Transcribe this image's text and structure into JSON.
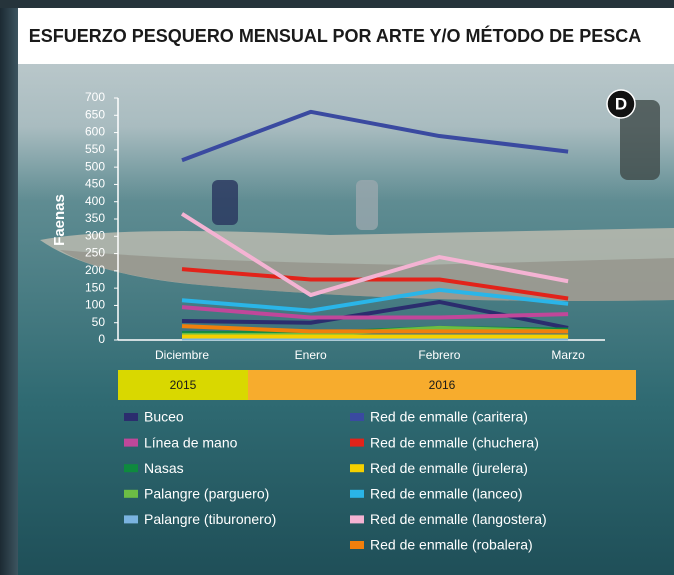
{
  "chart_data": {
    "type": "line",
    "title": "ESFUERZO PESQUERO MENSUAL POR ARTE Y/O MÉTODO DE PESCA",
    "panel_label": "D",
    "y_label": "Faenas",
    "categories": [
      "Diciembre",
      "Enero",
      "Febrero",
      "Marzo"
    ],
    "year_bands": [
      {
        "label": "2015",
        "color": "#d9d800"
      },
      {
        "label": "2016",
        "color": "#f7ac2d"
      }
    ],
    "ylim": [
      0,
      700
    ],
    "yticks": [
      0,
      50,
      100,
      150,
      200,
      250,
      300,
      350,
      400,
      450,
      500,
      550,
      600,
      650,
      700
    ],
    "grid": false,
    "series": [
      {
        "name": "Buceo",
        "color": "#2b2d6e",
        "values": [
          55,
          50,
          110,
          35
        ]
      },
      {
        "name": "Línea de mano",
        "color": "#c0479a",
        "values": [
          95,
          65,
          65,
          75
        ]
      },
      {
        "name": "Nasas",
        "color": "#0e8a3e",
        "values": [
          20,
          20,
          35,
          30
        ]
      },
      {
        "name": "Palangre (parguero)",
        "color": "#6cbd45",
        "values": [
          15,
          15,
          35,
          25
        ]
      },
      {
        "name": "Palangre (tiburonero)",
        "color": "#7ab3e0",
        "values": [
          5,
          5,
          5,
          5
        ]
      },
      {
        "name": "Red de enmalle (caritera)",
        "color": "#3a4aa0",
        "values": [
          520,
          660,
          590,
          545
        ]
      },
      {
        "name": "Red de enmalle (chuchera)",
        "color": "#e2231a",
        "values": [
          205,
          175,
          175,
          120
        ]
      },
      {
        "name": "Red de enmalle (jurelera)",
        "color": "#f5d000",
        "values": [
          10,
          10,
          10,
          10
        ]
      },
      {
        "name": "Red de enmalle (lanceo)",
        "color": "#2ab5e8",
        "values": [
          115,
          85,
          145,
          105
        ]
      },
      {
        "name": "Red de enmalle (langostera)",
        "color": "#f4b3d3",
        "values": [
          365,
          130,
          240,
          170
        ]
      },
      {
        "name": "Red de enmalle (robalera)",
        "color": "#f07f0c",
        "values": [
          40,
          25,
          25,
          25
        ]
      }
    ]
  }
}
